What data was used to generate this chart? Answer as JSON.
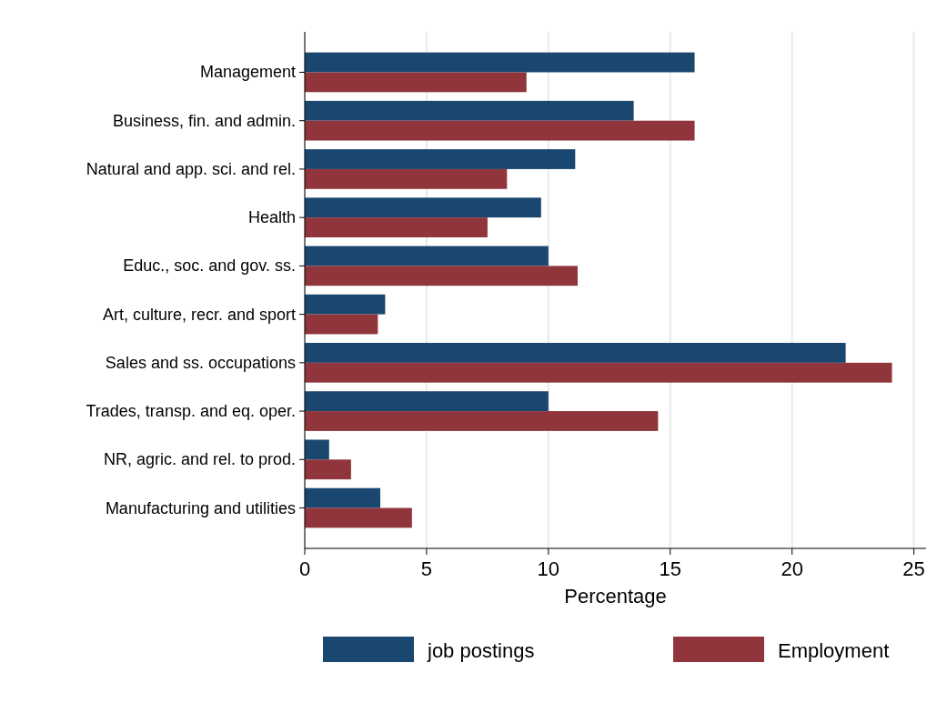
{
  "chart_data": {
    "type": "bar",
    "orientation": "horizontal",
    "xlabel": "Percentage",
    "categories": [
      "Management",
      "Business, fin. and admin.",
      "Natural and app. sci. and rel.",
      "Health",
      "Educ., soc. and gov. ss.",
      "Art, culture, recr. and sport",
      "Sales and ss. occupations",
      "Trades, transp. and eq. oper.",
      "NR, agric. and rel. to prod.",
      "Manufacturing and utilities"
    ],
    "series": [
      {
        "name": "job postings",
        "color": "#1a476f",
        "values": [
          16.0,
          13.5,
          11.1,
          9.7,
          10.0,
          3.3,
          22.2,
          10.0,
          1.0,
          3.1
        ]
      },
      {
        "name": "Employment",
        "color": "#90353b",
        "values": [
          9.1,
          16.0,
          8.3,
          7.5,
          11.2,
          3.0,
          24.1,
          14.5,
          1.9,
          4.4
        ]
      }
    ],
    "xlim": [
      0,
      25.5
    ],
    "xticks": [
      0,
      5,
      10,
      15,
      20,
      25
    ],
    "grid": "x",
    "legend": "bottom"
  }
}
